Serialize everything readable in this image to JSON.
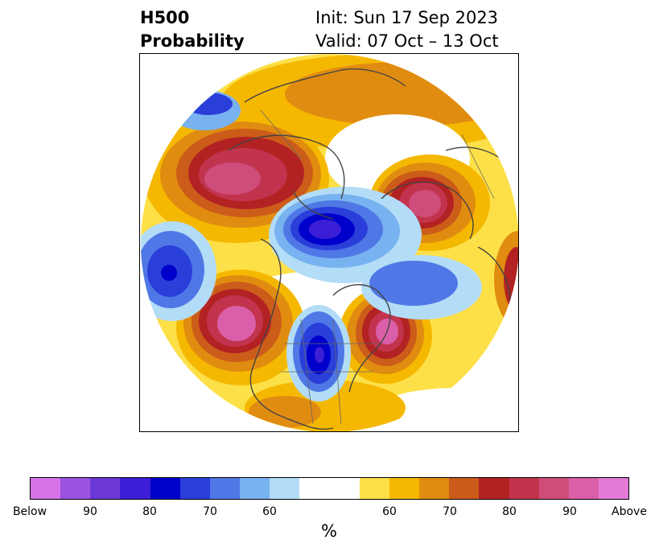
{
  "header": {
    "title_line1": "H500",
    "title_line2": "Probability",
    "init_text": "Init: Sun 17 Sep 2023",
    "valid_text": "Valid: 07 Oct – 13 Oct"
  },
  "colorbar": {
    "label": "%",
    "colors": [
      "#d673e6",
      "#9a52e0",
      "#6b38d6",
      "#3c1ed6",
      "#0000cc",
      "#2a3fd9",
      "#4f78e6",
      "#78b2f0",
      "#b3dcf7",
      "#ffffff",
      "#ffffff",
      "#fde048",
      "#f5b800",
      "#e08c10",
      "#cc5c1a",
      "#b32222",
      "#c2344e",
      "#cf4d7a",
      "#db5fa8",
      "#e67ad9"
    ],
    "ticks": [
      "Below",
      "90",
      "80",
      "70",
      "60",
      "60",
      "70",
      "80",
      "90",
      "Above"
    ]
  },
  "legend_colors": {
    "below_strong": "#0000cc",
    "above_strong": "#e67ad9"
  }
}
